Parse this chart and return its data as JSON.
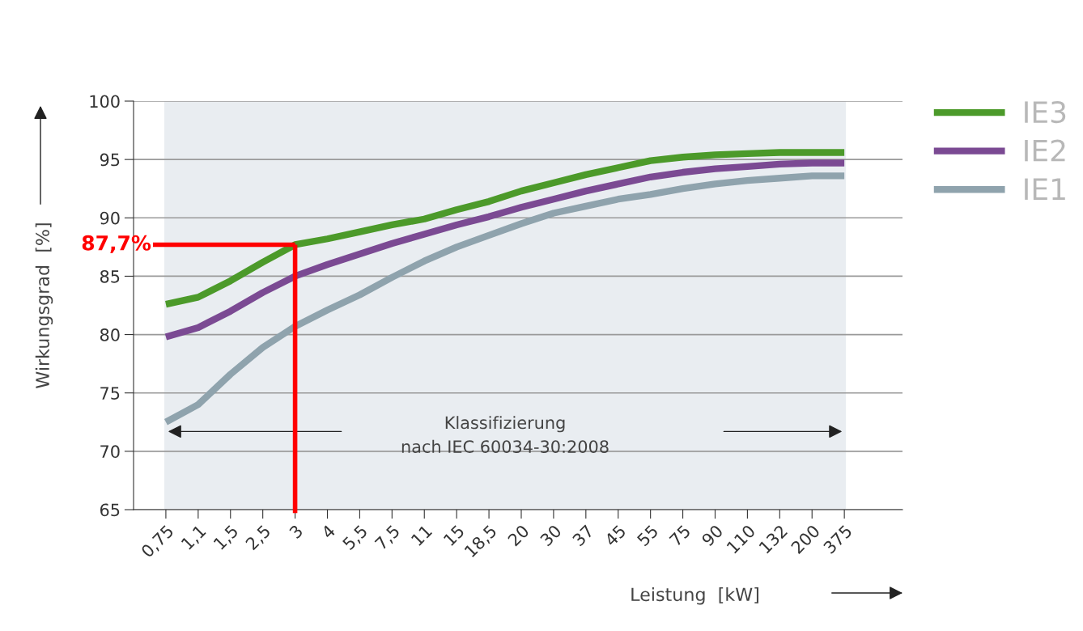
{
  "chart_data": {
    "type": "line",
    "categories": [
      "0,75",
      "1,1",
      "1,5",
      "2,5",
      "3",
      "4",
      "5,5",
      "7,5",
      "11",
      "15",
      "18,5",
      "20",
      "30",
      "37",
      "45",
      "55",
      "75",
      "90",
      "110",
      "132",
      "200",
      "375"
    ],
    "series": [
      {
        "name": "IE3",
        "color": "#4c9a2a",
        "values": [
          82.6,
          83.2,
          84.6,
          86.2,
          87.7,
          88.2,
          88.8,
          89.4,
          89.9,
          90.7,
          91.4,
          92.3,
          93.0,
          93.7,
          94.3,
          94.9,
          95.2,
          95.4,
          95.5,
          95.6,
          95.6,
          95.6
        ]
      },
      {
        "name": "IE2",
        "color": "#7b4a93",
        "values": [
          79.8,
          80.6,
          82.0,
          83.6,
          85.0,
          86.0,
          86.9,
          87.8,
          88.6,
          89.4,
          90.1,
          90.9,
          91.6,
          92.3,
          92.9,
          93.5,
          93.9,
          94.2,
          94.4,
          94.6,
          94.7,
          94.7
        ]
      },
      {
        "name": "IE1",
        "color": "#8fa3ad",
        "values": [
          72.5,
          74.0,
          76.6,
          78.9,
          80.7,
          82.1,
          83.4,
          84.9,
          86.3,
          87.5,
          88.5,
          89.5,
          90.4,
          91.0,
          91.6,
          92.0,
          92.5,
          92.9,
          93.2,
          93.4,
          93.6,
          93.6
        ]
      }
    ],
    "xlabel": "Leistung  [kW]",
    "ylabel": "Wirkungsgrad  [%]",
    "ylim": [
      65,
      100
    ],
    "yticks": [
      65,
      70,
      75,
      80,
      85,
      90,
      95,
      100
    ],
    "grid": "y",
    "legend": "right",
    "marker": "none",
    "line_style": "solid",
    "bands": [
      {
        "axis": "x",
        "from": "0,75",
        "to": "375",
        "label": "Klassifizierung\nnach IEC 60034-30:2008",
        "color": "#e9edf1"
      }
    ],
    "ref_lines": [
      {
        "axis": "y",
        "value": 87.7,
        "label": "87,7%",
        "color": "#ff0000"
      },
      {
        "axis": "x",
        "value": "3",
        "color": "#ff0000"
      }
    ]
  }
}
